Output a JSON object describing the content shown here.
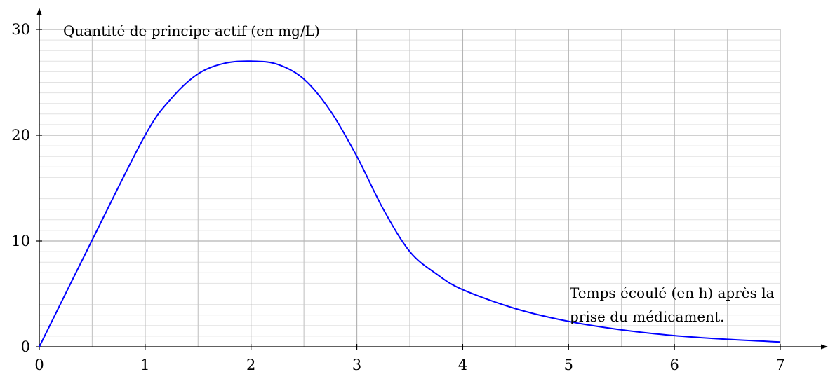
{
  "chart_data": {
    "type": "line",
    "ylabel": "Quantité de principe actif (en mg/L)",
    "xlabel_lines": [
      "Temps écoulé (en h) après la",
      "prise du médicament."
    ],
    "xlim": [
      0,
      7
    ],
    "ylim": [
      0,
      30
    ],
    "x_ticks": [
      0,
      1,
      2,
      3,
      4,
      5,
      6,
      7
    ],
    "y_ticks": [
      0,
      10,
      20,
      30
    ],
    "x_tick_labels": [
      "0",
      "1",
      "2",
      "3",
      "4",
      "5",
      "6",
      "7"
    ],
    "y_tick_labels": [
      "0",
      "10",
      "20",
      "30"
    ],
    "grid": true,
    "series": [
      {
        "color": "#0000ff",
        "x": [
          0,
          0.5,
          1,
          1.25,
          1.5,
          1.75,
          2,
          2.25,
          2.5,
          2.75,
          3,
          3.25,
          3.5,
          3.75,
          4,
          4.5,
          5,
          5.5,
          6,
          6.5,
          7
        ],
        "y": [
          0,
          10.1,
          20,
          23.5,
          25.8,
          26.8,
          27,
          26.7,
          25.3,
          22.3,
          18,
          13,
          9,
          6.9,
          5.4,
          3.6,
          2.4,
          1.6,
          1.05,
          0.7,
          0.45
        ]
      }
    ]
  }
}
